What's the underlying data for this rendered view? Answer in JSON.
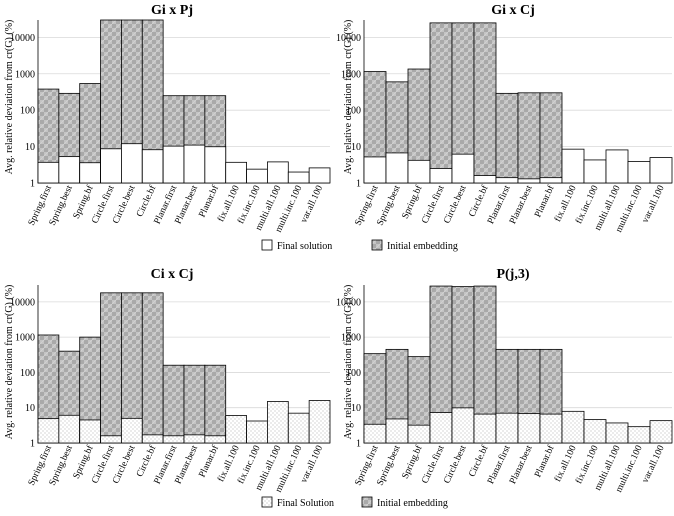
{
  "figure": {
    "legend_top": {
      "final": "Final solution",
      "initial": "Initial embedding"
    },
    "legend_bottom": {
      "final": "Final Solution",
      "initial": "Initial embedding"
    }
  },
  "colors": {
    "initial_fill": "#bdbdbd",
    "final_fill": "#ffffff",
    "final_dot": "#8a8a8a",
    "grid": "#d9d9d9",
    "axis": "#000000"
  },
  "chart_data": [
    {
      "type": "bar",
      "title": "Gi x Pj",
      "ylabel": "Avg. relative deviation from cr(G) (%)",
      "yscale": "log",
      "ylim": [
        1,
        30000
      ],
      "yticks": [
        "1",
        "10",
        "100",
        "1000",
        "10000"
      ],
      "grid": true,
      "categories": [
        "Spring.first",
        "Spring.best",
        "Spring.bf",
        "Circle.first",
        "Circle.best",
        "Circle.bf",
        "Planar.first",
        "Planar.best",
        "Planar.bf",
        "fix.all.100",
        "fix.inc.100",
        "multi.all.100",
        "multi.inc.100",
        "var.all.100"
      ],
      "series": [
        {
          "name": "Initial embedding",
          "values": [
            380,
            290,
            540,
            30000,
            30000,
            30000,
            250,
            250,
            250,
            null,
            null,
            null,
            null,
            null
          ]
        },
        {
          "name": "Final solution",
          "values": [
            3.7,
            5.3,
            3.6,
            8.7,
            12,
            8.2,
            10.3,
            11,
            9.9,
            3.7,
            2.4,
            3.8,
            2.0,
            2.6
          ]
        }
      ]
    },
    {
      "type": "bar",
      "title": "Gi x Cj",
      "ylabel": "Avg. relative deviation from cr(G) (%)",
      "yscale": "log",
      "ylim": [
        1,
        30000
      ],
      "yticks": [
        "1",
        "10",
        "100",
        "1000",
        "10000"
      ],
      "grid": true,
      "categories": [
        "Spring.first",
        "Spring.best",
        "Spring.bf",
        "Circle.first",
        "Circle.best",
        "Circle.bf",
        "Planar.first",
        "Planar.best",
        "Planar.bf",
        "fix.all.100",
        "fix.inc.100",
        "multi.all.100",
        "multi.inc.100",
        "var.all.100"
      ],
      "series": [
        {
          "name": "Initial embedding",
          "values": [
            1150,
            600,
            1350,
            25000,
            25000,
            25000,
            290,
            300,
            300,
            null,
            null,
            null,
            null,
            null
          ]
        },
        {
          "name": "Final solution",
          "values": [
            5.2,
            6.7,
            4.2,
            2.5,
            6.2,
            1.6,
            1.4,
            1.3,
            1.4,
            8.5,
            4.3,
            8.1,
            3.9,
            5.0
          ]
        }
      ]
    },
    {
      "type": "bar",
      "title": "Ci x Cj",
      "ylabel": "Avg. relative deviation from cr(G) (%)",
      "yscale": "log",
      "ylim": [
        1,
        30000
      ],
      "yticks": [
        "1",
        "10",
        "100",
        "1000",
        "10000"
      ],
      "grid": true,
      "categories": [
        "Spring.first",
        "Spring.best",
        "Spring.bf",
        "Circle.first",
        "Circle.best",
        "Circle.bf",
        "Planar.first",
        "Planar.best",
        "Planar.bf",
        "fix.all.100",
        "fix.inc.100",
        "multi.all.100",
        "multi.inc.100",
        "var.all.100"
      ],
      "series": [
        {
          "name": "Initial embedding",
          "values": [
            1150,
            400,
            1000,
            18000,
            18000,
            18000,
            160,
            160,
            160,
            null,
            null,
            null,
            null,
            null
          ]
        },
        {
          "name": "Final Solution",
          "values": [
            4.9,
            6.1,
            4.5,
            1.6,
            5.0,
            1.7,
            1.6,
            1.7,
            1.6,
            6.0,
            4.2,
            15,
            7.0,
            16
          ]
        }
      ]
    },
    {
      "type": "bar",
      "title": "P(j,3)",
      "ylabel": "Avg. relative deviation from cr(G) (%)",
      "yscale": "log",
      "ylim": [
        1,
        30000
      ],
      "yticks": [
        "1",
        "10",
        "100",
        "1000",
        "10000"
      ],
      "grid": true,
      "categories": [
        "Spring.first",
        "Spring.best",
        "Spring.bf",
        "Circle.first",
        "Circle.best",
        "Circle.bf",
        "Planar.first",
        "Planar.best",
        "Planar.bf",
        "fix.all.100",
        "fix.inc.100",
        "multi.all.100",
        "multi.inc.100",
        "var.all.100"
      ],
      "series": [
        {
          "name": "Initial embedding",
          "values": [
            340,
            450,
            280,
            28000,
            27000,
            28000,
            450,
            450,
            450,
            null,
            null,
            null,
            null,
            null
          ]
        },
        {
          "name": "Final Solution",
          "values": [
            3.4,
            4.8,
            3.2,
            7.3,
            9.9,
            6.6,
            7.0,
            6.8,
            6.6,
            7.9,
            4.6,
            3.7,
            2.9,
            4.3
          ]
        }
      ]
    }
  ]
}
